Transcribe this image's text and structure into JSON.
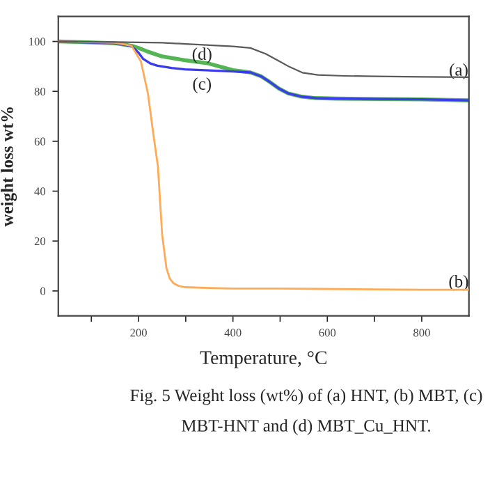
{
  "chart_data": {
    "type": "line",
    "xlabel": "Temperature, °C",
    "ylabel": "weight loss wt%",
    "xlim": [
      30,
      900
    ],
    "ylim": [
      -10,
      110
    ],
    "xticks": [
      {
        "value": 100,
        "label": null
      },
      200,
      {
        "value": 300,
        "label": null
      },
      400,
      {
        "value": 500,
        "label": null
      },
      600,
      {
        "value": 700,
        "label": null
      },
      800
    ],
    "yticks": [
      0,
      20,
      40,
      60,
      80,
      100
    ],
    "grid": false,
    "legend": false,
    "marker": "none",
    "line_style": "solid",
    "series": [
      {
        "color": "#5a5a5a",
        "x": [
          30,
          150,
          250,
          300,
          400,
          437,
          470,
          497,
          520,
          547,
          580,
          636,
          700,
          800,
          900
        ],
        "values": [
          100,
          99.8,
          99.5,
          99,
          98,
          97.4,
          95,
          92.2,
          89.8,
          87.5,
          86.6,
          86.2,
          86,
          85.8,
          85.7
        ]
      },
      {
        "color": "#ffaa55",
        "x": [
          30,
          150,
          185,
          205,
          220,
          232,
          241,
          250,
          259,
          266,
          274,
          285,
          298,
          350,
          400,
          500,
          600,
          700,
          800,
          900
        ],
        "values": [
          100,
          99.5,
          98.3,
          92,
          79,
          62,
          50,
          22.6,
          9.3,
          5,
          3.1,
          2,
          1.5,
          1.2,
          1,
          1,
          0.8,
          0.6,
          0.5,
          0.5
        ]
      },
      {
        "color": "#3a3aee",
        "x": [
          30,
          150,
          185,
          200,
          210,
          225,
          240,
          270,
          298,
          350,
          400,
          437,
          460,
          477,
          497,
          517,
          545,
          576,
          620,
          670,
          800,
          900
        ],
        "values": [
          100,
          99.3,
          98.2,
          95.5,
          93,
          91.2,
          90.3,
          89.4,
          88.8,
          88.4,
          88,
          87.6,
          86,
          83.9,
          81.2,
          79.2,
          77.9,
          77.3,
          77.1,
          77,
          76.8,
          76.4
        ]
      },
      {
        "color": "#55b555",
        "x": [
          30,
          150,
          185,
          200,
          220,
          250,
          298,
          348,
          400,
          437,
          460,
          477,
          497,
          517,
          545,
          576,
          620,
          670,
          800,
          900
        ],
        "values": [
          100,
          99.3,
          98.3,
          97.4,
          95.9,
          94,
          92.5,
          91.2,
          88.5,
          87.6,
          86,
          83.9,
          81.2,
          79.2,
          77.9,
          77.3,
          77.1,
          77,
          76.8,
          76.4
        ]
      }
    ],
    "annotations": [
      "(a)",
      "(b)",
      "(c)",
      "(d)",
      "Fig. 5 Weight loss (wt%) of (a) HNT, (b) MBT, (c) MBT-HNT and (d) MBT_Cu_HNT."
    ]
  }
}
